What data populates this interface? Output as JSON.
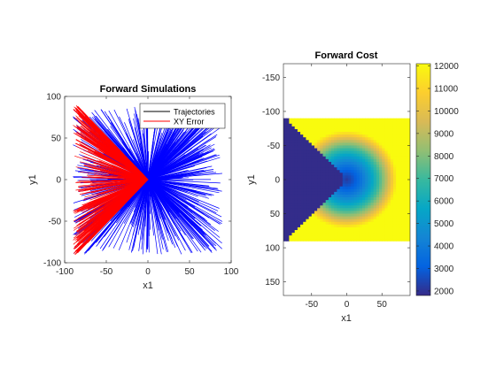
{
  "chart_data": [
    {
      "type": "line",
      "title": "Forward Simulations",
      "xlabel": "x1",
      "ylabel": "y1",
      "xlim": [
        -100,
        100
      ],
      "ylim": [
        -100,
        100
      ],
      "x_ticks": [
        -100,
        -50,
        0,
        50,
        100
      ],
      "y_ticks": [
        -100,
        -50,
        0,
        50,
        100
      ],
      "legend_position": "top-right",
      "series": [
        {
          "name": "Trajectories",
          "color": "#0000ff",
          "start_region": {
            "x": [
              -90,
              90
            ],
            "y": [
              -90,
              90
            ]
          },
          "end_point": {
            "x": 0,
            "y": 0
          }
        },
        {
          "name": "XY Error",
          "color": "#ff0000",
          "start_region": {
            "x": [
              -90,
              -5
            ],
            "y": [
              -90,
              90
            ]
          },
          "end_point": {
            "x": 0,
            "y": 0
          }
        }
      ],
      "legend_line_color": "#000000"
    },
    {
      "type": "heatmap",
      "title": "Forward Cost",
      "xlabel": "x1",
      "ylabel": "y1",
      "xlim": [
        -90,
        90
      ],
      "ylim": [
        -170,
        170
      ],
      "y_reversed": true,
      "x_ticks": [
        -50,
        0,
        50
      ],
      "y_ticks": [
        -150,
        -100,
        -50,
        0,
        50,
        100,
        150
      ],
      "data_extent": {
        "x": [
          -90,
          90
        ],
        "y": [
          -90,
          90
        ]
      },
      "colorbar": {
        "colormap": "parula",
        "range": [
          1800,
          12100
        ],
        "ticks": [
          2000,
          3000,
          4000,
          5000,
          6000,
          7000,
          8000,
          9000,
          10000,
          11000,
          12000
        ]
      }
    }
  ]
}
